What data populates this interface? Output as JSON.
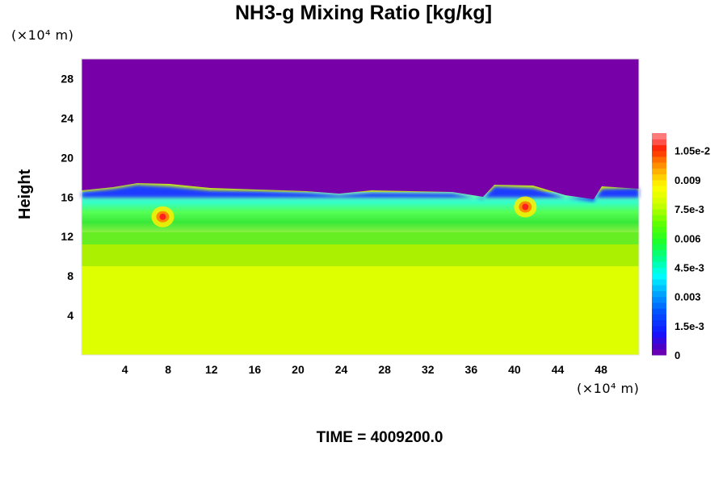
{
  "chart_data": {
    "type": "heatmap",
    "title": "NH3-g Mixing Ratio [kg/kg]",
    "ylabel": "Height",
    "x_unit": "(×10⁴ m)",
    "y_unit": "(×10⁴ m)",
    "xlim": [
      0,
      51.5
    ],
    "ylim": [
      0,
      30
    ],
    "x_ticks": [
      "4",
      "8",
      "12",
      "16",
      "20",
      "24",
      "28",
      "32",
      "36",
      "40",
      "44",
      "48"
    ],
    "y_ticks": [
      "4",
      "8",
      "12",
      "16",
      "20",
      "24",
      "28"
    ],
    "colorbar": {
      "range": [
        0,
        0.0114
      ],
      "tick_labels": [
        "1.05e-2",
        "0.009",
        "7.5e-3",
        "0.006",
        "4.5e-3",
        "0.003",
        "1.5e-3",
        "0"
      ],
      "tick_values": [
        0.0105,
        0.009,
        0.0075,
        0.006,
        0.0045,
        0.003,
        0.0015,
        0
      ]
    },
    "layers": [
      {
        "region": "y 0–9 (×10⁴ m)",
        "value": 0.0078
      },
      {
        "region": "y 9–12",
        "value": 0.0058
      },
      {
        "region": "y 12–16",
        "value": 0.004
      },
      {
        "region": "y 16–30",
        "value": 0.0
      }
    ],
    "hotspots": [
      {
        "x": 7.5,
        "y": 14.0,
        "value": 0.0105
      },
      {
        "x": 41.0,
        "y": 15.0,
        "value": 0.01
      }
    ]
  },
  "footer": {
    "time_label": "TIME = 4009200.0"
  }
}
